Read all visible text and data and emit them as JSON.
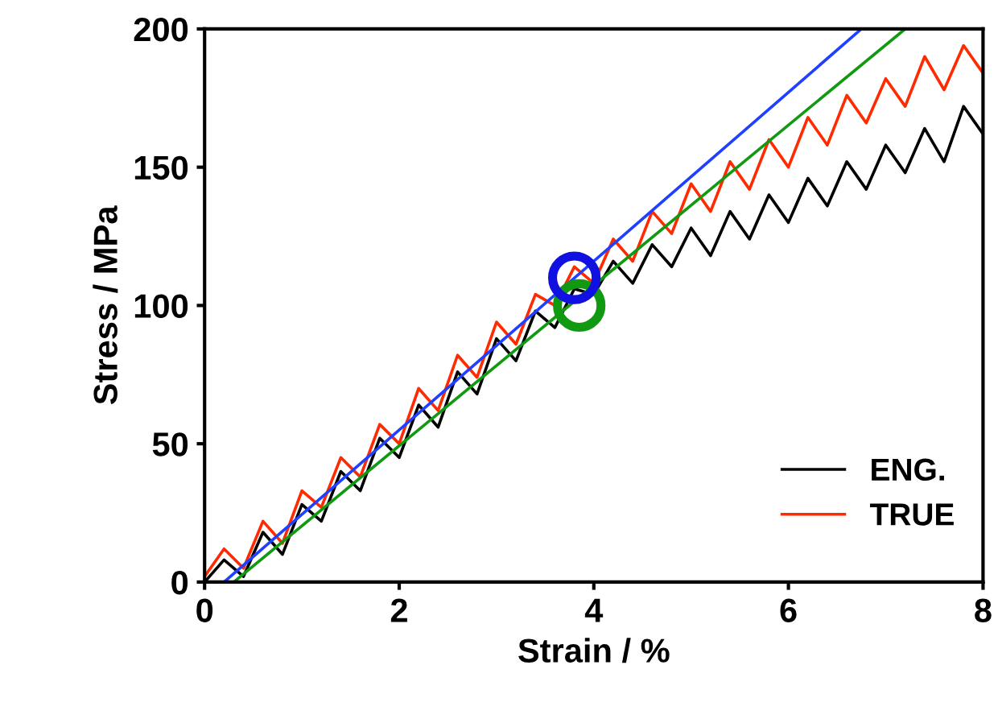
{
  "chart_data": {
    "type": "line",
    "xlabel": "Strain / %",
    "ylabel": "Stress / MPa",
    "xlim": [
      0,
      8
    ],
    "ylim": [
      0,
      200
    ],
    "xticks": [
      0,
      2,
      4,
      6,
      8
    ],
    "yticks": [
      0,
      50,
      100,
      150,
      200
    ],
    "grid": false,
    "legend": "bottom right",
    "marker": "none",
    "line_style": "solid",
    "series": [
      {
        "name": "ENG.",
        "color": "#000000",
        "x": [
          0,
          0.2,
          0.4,
          0.6,
          0.8,
          1.0,
          1.2,
          1.4,
          1.6,
          1.8,
          2.0,
          2.2,
          2.4,
          2.6,
          2.8,
          3.0,
          3.2,
          3.4,
          3.6,
          3.8,
          4.0,
          4.2,
          4.4,
          4.6,
          4.8,
          5.0,
          5.2,
          5.4,
          5.6,
          5.8,
          6.0,
          6.2,
          6.4,
          6.6,
          6.8,
          7.0,
          7.2,
          7.4,
          7.6,
          7.8,
          8.0
        ],
        "values": [
          0,
          8,
          2,
          18,
          10,
          28,
          22,
          40,
          33,
          52,
          45,
          64,
          56,
          76,
          68,
          88,
          80,
          98,
          92,
          106,
          104,
          116,
          108,
          122,
          114,
          128,
          118,
          134,
          124,
          140,
          130,
          146,
          136,
          152,
          142,
          158,
          148,
          164,
          152,
          172,
          162
        ]
      },
      {
        "name": "TRUE",
        "color": "#ff2a00",
        "x": [
          0,
          0.2,
          0.4,
          0.6,
          0.8,
          1.0,
          1.2,
          1.4,
          1.6,
          1.8,
          2.0,
          2.2,
          2.4,
          2.6,
          2.8,
          3.0,
          3.2,
          3.4,
          3.6,
          3.8,
          4.0,
          4.2,
          4.4,
          4.6,
          4.8,
          5.0,
          5.2,
          5.4,
          5.6,
          5.8,
          6.0,
          6.2,
          6.4,
          6.6,
          6.8,
          7.0,
          7.2,
          7.4,
          7.6,
          7.8,
          8.0
        ],
        "values": [
          2,
          12,
          5,
          22,
          14,
          33,
          27,
          45,
          38,
          57,
          50,
          70,
          62,
          82,
          74,
          94,
          86,
          104,
          100,
          114,
          108,
          124,
          116,
          134,
          126,
          144,
          134,
          152,
          142,
          160,
          150,
          168,
          158,
          176,
          166,
          182,
          172,
          190,
          178,
          194,
          184
        ]
      },
      {
        "color": "#2040ff",
        "x": [
          0.2,
          6.75
        ],
        "values": [
          0,
          200
        ]
      },
      {
        "color": "#119911",
        "x": [
          0.3,
          7.2
        ],
        "values": [
          0,
          200
        ]
      },
      {
        "type": "scatter",
        "marker": "circle",
        "color": "#119911",
        "x": [
          3.85
        ],
        "values": [
          100
        ]
      },
      {
        "type": "scatter",
        "marker": "circle",
        "color": "#1010e0",
        "x": [
          3.8
        ],
        "values": [
          110
        ]
      }
    ]
  }
}
